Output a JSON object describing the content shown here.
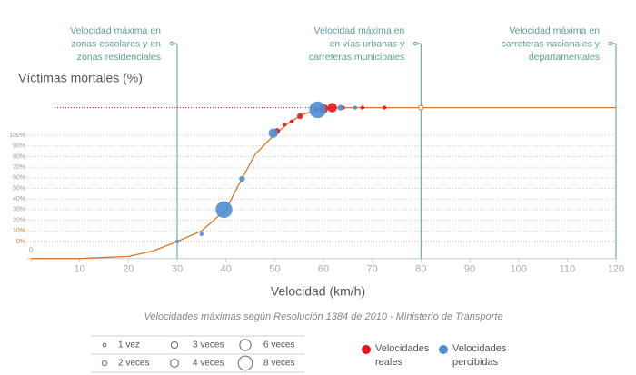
{
  "chart_data": {
    "type": "bubble",
    "y_axis_label": "Víctimas mortales (%)",
    "x_axis_label": "Velocidad (km/h)",
    "caption": "Velocidades máximas según Resolución 1384 de 2010 - Ministerio de Transporte",
    "xlim": [
      0,
      120
    ],
    "ylim": [
      -16,
      126
    ],
    "xticks": [
      0,
      10,
      20,
      30,
      40,
      50,
      60,
      70,
      80,
      90,
      100,
      110,
      120
    ],
    "yticks": [
      {
        "value": 0,
        "label": "0%"
      },
      {
        "value": 10,
        "label": "10%"
      },
      {
        "value": 20,
        "label": "20%"
      },
      {
        "value": 30,
        "label": "30%"
      },
      {
        "value": 40,
        "label": "40%"
      },
      {
        "value": 50,
        "label": "50%"
      },
      {
        "value": 60,
        "label": "60%"
      },
      {
        "value": 70,
        "label": "70%"
      },
      {
        "value": 80,
        "label": "80%"
      },
      {
        "value": 90,
        "label": "90%"
      },
      {
        "value": 100,
        "label": "100%"
      }
    ],
    "grid": true,
    "curve": {
      "color": "#d9782d",
      "x": [
        0,
        10,
        20,
        25,
        30,
        35,
        40,
        43,
        46,
        50,
        53,
        56,
        59,
        62,
        66,
        70,
        80,
        90,
        100,
        110,
        120
      ],
      "y": [
        -16,
        -16,
        -14,
        -9,
        0,
        10,
        30,
        57,
        82,
        101,
        112,
        120,
        124,
        126,
        126,
        126,
        126,
        126,
        126,
        126,
        126
      ]
    },
    "series": [
      {
        "name": "Velocidades reales",
        "color": "#e8141c",
        "x": [
          50.5,
          52,
          53.5,
          55.2,
          58.5,
          60,
          61.8,
          64,
          68,
          72.5
        ],
        "y": [
          104,
          110,
          113,
          118,
          124,
          125,
          126,
          126,
          126,
          126
        ],
        "counts": [
          2,
          1,
          1,
          2,
          1,
          4,
          4,
          1,
          1,
          1
        ]
      },
      {
        "name": "Velocidades percibidas",
        "color": "#4a8fd4",
        "x": [
          30,
          35,
          39.6,
          43.3,
          49.7,
          58.8,
          63.5,
          66.5
        ],
        "y": [
          0,
          7,
          30,
          59,
          102,
          124,
          126,
          126
        ],
        "counts": [
          1,
          1,
          8,
          2,
          4,
          8,
          2,
          1
        ]
      }
    ],
    "size_legend": [
      {
        "value": 1,
        "label": "1 vez"
      },
      {
        "value": 2,
        "label": "2 veces"
      },
      {
        "value": 3,
        "label": "3 veces"
      },
      {
        "value": 4,
        "label": "4 veces"
      },
      {
        "value": 6,
        "label": "6 veces"
      },
      {
        "value": 8,
        "label": "8 veces"
      }
    ],
    "annotations": [
      {
        "x": 30,
        "lines": [
          "Velocidad máxima en",
          "zonas escolares y en",
          "zonas residenciales"
        ]
      },
      {
        "x": 80,
        "lines": [
          "Velocidad máxima en",
          "en vías urbanas y",
          "carreteras municipales"
        ]
      },
      {
        "x": 120,
        "lines": [
          "Velocidad máxima en",
          "carreteras nacionales y",
          "departamentales"
        ]
      }
    ],
    "annotation_color": "#5a9e96"
  }
}
